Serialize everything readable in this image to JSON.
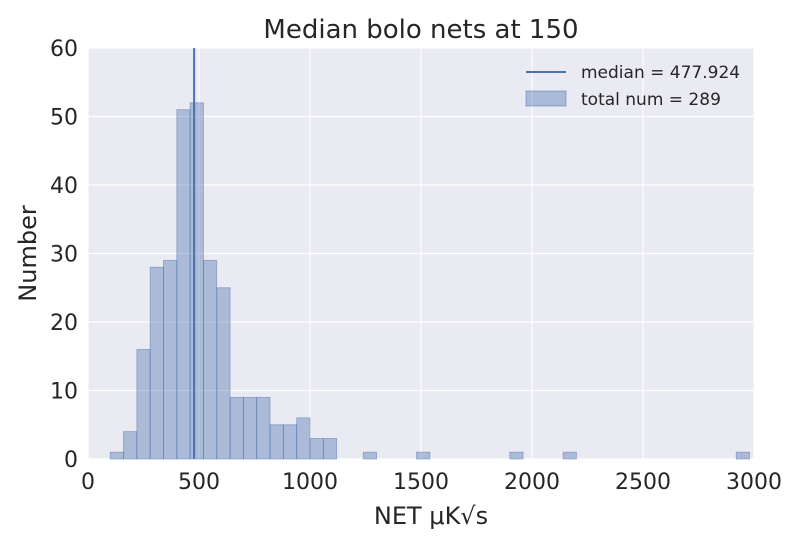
{
  "chart_data": {
    "type": "bar",
    "title": "Median bolo nets at 150",
    "xlabel": "NET μK√s",
    "ylabel": "Number",
    "xlim": [
      0,
      3000
    ],
    "ylim": [
      0,
      60
    ],
    "xticks": [
      "0",
      "500",
      "1000",
      "1500",
      "2000",
      "2500",
      "3000"
    ],
    "yticks": [
      "0",
      "10",
      "20",
      "30",
      "40",
      "50",
      "60"
    ],
    "grid": true,
    "legend_position": "top-right",
    "bin_width": 60,
    "bins": [
      {
        "start": 100,
        "count": 1
      },
      {
        "start": 160,
        "count": 4
      },
      {
        "start": 220,
        "count": 16
      },
      {
        "start": 280,
        "count": 28
      },
      {
        "start": 340,
        "count": 29
      },
      {
        "start": 400,
        "count": 51
      },
      {
        "start": 460,
        "count": 52
      },
      {
        "start": 520,
        "count": 29
      },
      {
        "start": 580,
        "count": 25
      },
      {
        "start": 640,
        "count": 9
      },
      {
        "start": 700,
        "count": 9
      },
      {
        "start": 760,
        "count": 9
      },
      {
        "start": 820,
        "count": 5
      },
      {
        "start": 880,
        "count": 5
      },
      {
        "start": 940,
        "count": 6
      },
      {
        "start": 1000,
        "count": 3
      },
      {
        "start": 1060,
        "count": 3
      },
      {
        "start": 1240,
        "count": 1
      },
      {
        "start": 1480,
        "count": 1
      },
      {
        "start": 1900,
        "count": 1
      },
      {
        "start": 2140,
        "count": 1
      },
      {
        "start": 2920,
        "count": 1
      }
    ],
    "median": 477.924,
    "legend": [
      "median = 477.924",
      "total num = 289"
    ],
    "colors": {
      "bars": "#4c72b0",
      "median_line": "#4c72b0",
      "background": "#eaeaf2",
      "grid": "#ffffff"
    }
  }
}
